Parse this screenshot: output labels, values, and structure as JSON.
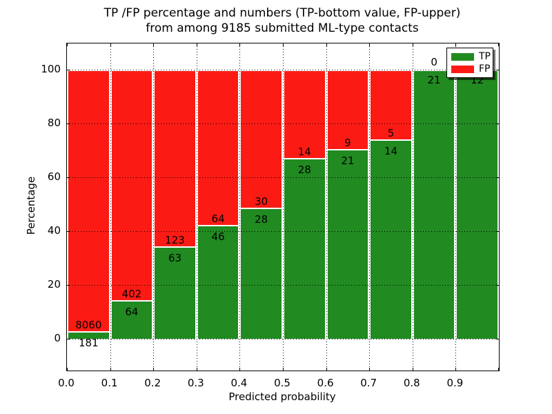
{
  "figure": {
    "title_line1": "TP /FP percentage and numbers (TP-bottom value, FP-upper)",
    "title_line2": "from among 9185 submitted ML-type contacts",
    "xlabel": "Predicted probability",
    "ylabel": "Percentage"
  },
  "legend": {
    "position": "upper right",
    "entries": [
      {
        "label": "TP",
        "color": "#218a21"
      },
      {
        "label": "FP",
        "color": "#fc1b14"
      }
    ]
  },
  "chart_data": {
    "type": "bar",
    "stacked": true,
    "normalized_to_percent": true,
    "title": "TP /FP percentage and numbers (TP-bottom value, FP-upper) from among 9185 submitted ML-type contacts",
    "xlabel": "Predicted probability",
    "ylabel": "Percentage",
    "total_contacts": 9185,
    "bin_edges": [
      0.0,
      0.1,
      0.2,
      0.3,
      0.4,
      0.5,
      0.6,
      0.7,
      0.8,
      0.9,
      1.0
    ],
    "series": [
      {
        "name": "TP",
        "color": "#218a21",
        "counts": [
          181,
          64,
          63,
          46,
          28,
          28,
          21,
          14,
          21,
          12
        ]
      },
      {
        "name": "FP",
        "color": "#fc1b14",
        "counts": [
          8060,
          402,
          123,
          64,
          30,
          14,
          9,
          5,
          0,
          0
        ]
      }
    ],
    "tp_percent_of_bin": [
      2.2,
      13.73,
      33.87,
      41.82,
      48.28,
      66.67,
      70.0,
      73.68,
      100.0,
      100.0
    ],
    "xticks": [
      "0.0",
      "0.1",
      "0.2",
      "0.3",
      "0.4",
      "0.5",
      "0.6",
      "0.7",
      "0.8",
      "0.9"
    ],
    "yticks": [
      "0",
      "20",
      "40",
      "60",
      "80",
      "100"
    ],
    "xlim": [
      0.0,
      1.0
    ],
    "ylim": [
      -12,
      110
    ],
    "grid": "dotted-black-on-top",
    "bar_edge_color": "#ffffff",
    "legend_position": "upper right",
    "notes_visible_labels": "FP count printed above TP/FP boundary, TP count below; FP label of last bin hidden behind legend"
  }
}
